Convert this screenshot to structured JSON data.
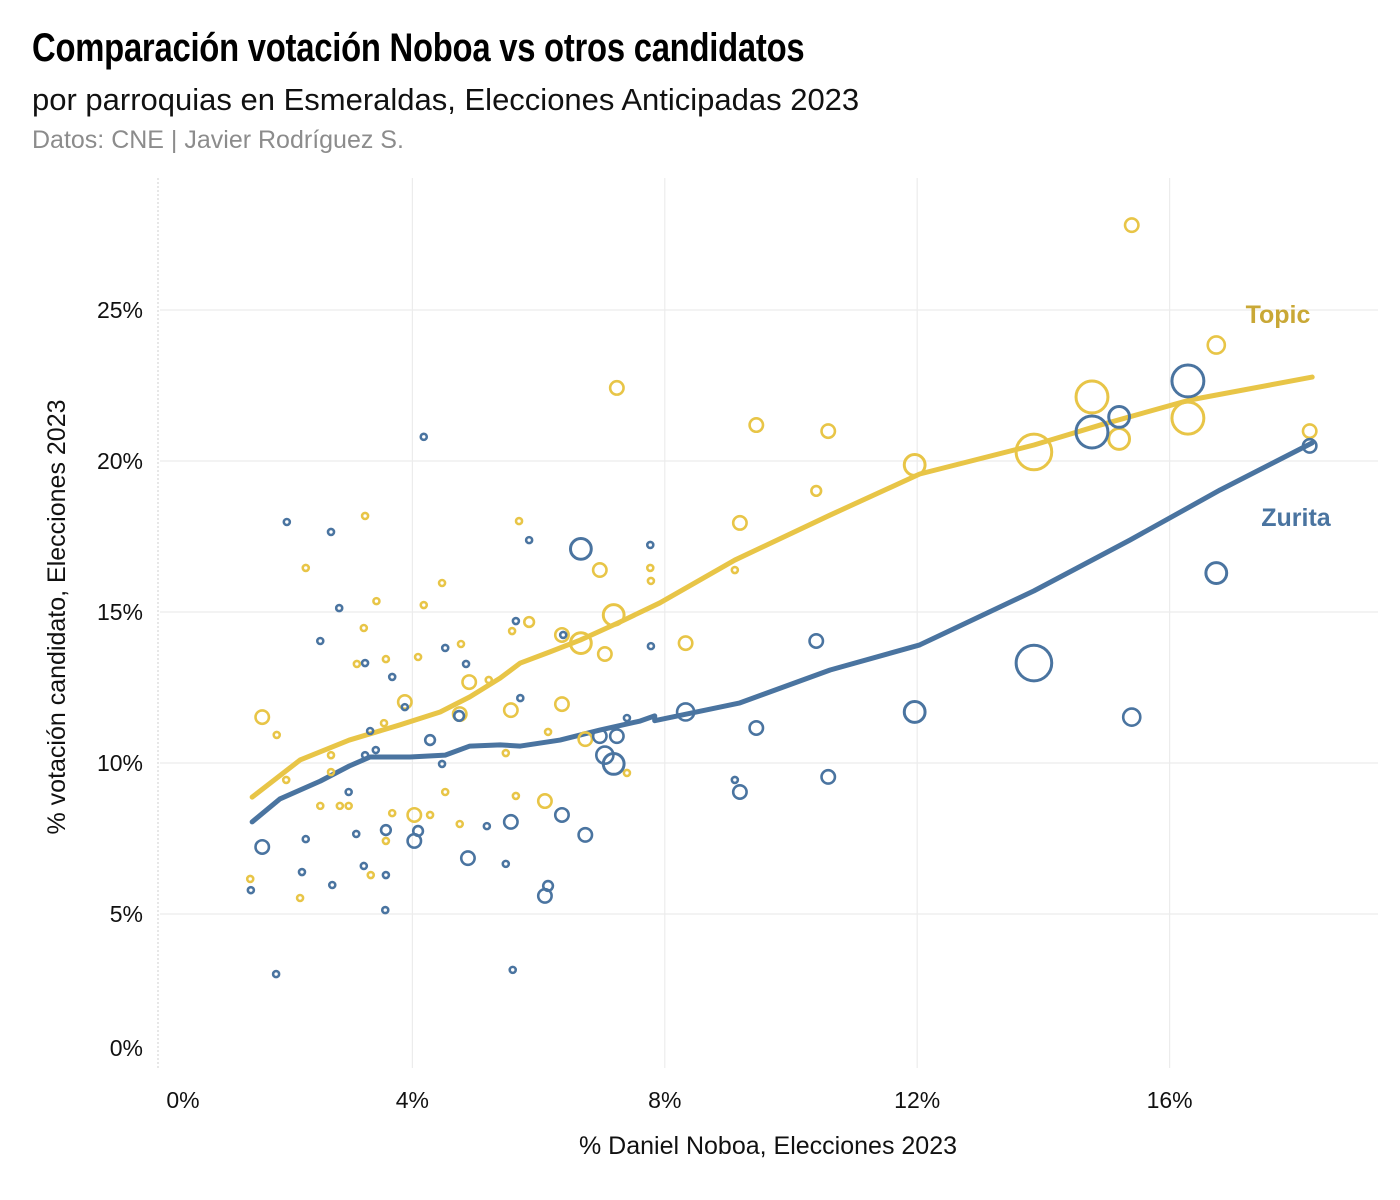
{
  "header": {
    "title": "Comparación votación Noboa vs otros candidatos",
    "subtitle": "por parroquias en Esmeraldas, Elecciones Anticipadas 2023",
    "source": "Datos: CNE | Javier Rodríguez S."
  },
  "chart_data": {
    "type": "scatter",
    "title": "Comparación votación Noboa vs otros candidatos",
    "subtitle": "por parroquias en Esmeraldas, Elecciones Anticipadas 2023",
    "xlabel": "% Daniel Noboa, Elecciones 2023",
    "ylabel": "% votación candidato, Elecciones 2023",
    "xlim": [
      0,
      19
    ],
    "ylim": [
      0,
      28
    ],
    "xticks": [
      0,
      4,
      8,
      12,
      16
    ],
    "xtick_labels": [
      "0%",
      "4%",
      "8%",
      "12%",
      "16%"
    ],
    "yticks": [
      0,
      5,
      10,
      15,
      20,
      25
    ],
    "ytick_labels": [
      "0%",
      "5%",
      "10%",
      "15%",
      "20%",
      "25%"
    ],
    "grid": true,
    "legend": "direct labels at right",
    "series": [
      {
        "name": "Topic",
        "color": "#E8C547",
        "label_color": "#C9A836",
        "points": [
          [
            1.43,
            6.16,
            1
          ],
          [
            1.62,
            11.52,
            2
          ],
          [
            1.85,
            10.93,
            1
          ],
          [
            2.0,
            9.44,
            1
          ],
          [
            2.22,
            5.53,
            1
          ],
          [
            2.31,
            16.46,
            1
          ],
          [
            2.54,
            8.58,
            1
          ],
          [
            2.71,
            10.26,
            1
          ],
          [
            2.71,
            9.7,
            1
          ],
          [
            2.85,
            8.58,
            1
          ],
          [
            2.99,
            8.58,
            1
          ],
          [
            3.12,
            13.28,
            1
          ],
          [
            3.25,
            18.18,
            1
          ],
          [
            3.23,
            14.47,
            1
          ],
          [
            3.34,
            6.29,
            1
          ],
          [
            3.43,
            15.36,
            1
          ],
          [
            3.55,
            11.32,
            1
          ],
          [
            3.58,
            13.44,
            1
          ],
          [
            3.58,
            7.42,
            1
          ],
          [
            3.68,
            8.34,
            1
          ],
          [
            3.88,
            12.02,
            2
          ],
          [
            4.03,
            8.28,
            2
          ],
          [
            4.09,
            13.51,
            1
          ],
          [
            4.18,
            15.23,
            1
          ],
          [
            4.28,
            8.28,
            1
          ],
          [
            4.47,
            15.96,
            1
          ],
          [
            4.52,
            9.04,
            1
          ],
          [
            4.75,
            7.98,
            1
          ],
          [
            4.77,
            13.94,
            1
          ],
          [
            4.75,
            11.62,
            2
          ],
          [
            4.9,
            12.68,
            2
          ],
          [
            5.21,
            12.75,
            1
          ],
          [
            5.48,
            10.33,
            1
          ],
          [
            5.56,
            11.75,
            2
          ],
          [
            5.58,
            14.37,
            1
          ],
          [
            5.64,
            8.91,
            1
          ],
          [
            5.69,
            18.01,
            1
          ],
          [
            5.85,
            14.67,
            1.5
          ],
          [
            6.1,
            8.74,
            2
          ],
          [
            6.15,
            11.03,
            1
          ],
          [
            6.37,
            14.24,
            2
          ],
          [
            6.37,
            11.95,
            2
          ],
          [
            6.67,
            13.97,
            3
          ],
          [
            6.74,
            10.79,
            2
          ],
          [
            6.97,
            16.39,
            2
          ],
          [
            7.05,
            13.61,
            2
          ],
          [
            7.19,
            14.9,
            3
          ],
          [
            7.24,
            22.42,
            2
          ],
          [
            7.4,
            9.67,
            1
          ],
          [
            7.77,
            16.46,
            1
          ],
          [
            7.78,
            16.03,
            1
          ],
          [
            8.33,
            13.97,
            2
          ],
          [
            9.11,
            16.39,
            1
          ],
          [
            9.19,
            17.95,
            2
          ],
          [
            9.45,
            21.19,
            2
          ],
          [
            10.4,
            19.01,
            1.5
          ],
          [
            10.59,
            20.99,
            2
          ],
          [
            11.96,
            19.87,
            3
          ],
          [
            13.85,
            20.3,
            5
          ],
          [
            14.77,
            22.12,
            4.5
          ],
          [
            15.2,
            20.73,
            3
          ],
          [
            15.4,
            27.81,
            2
          ],
          [
            16.29,
            21.42,
            4.5
          ],
          [
            16.74,
            23.84,
            2.5
          ],
          [
            18.22,
            20.99,
            2
          ]
        ],
        "trend": [
          [
            1.46,
            8.87
          ],
          [
            2.22,
            10.1
          ],
          [
            3.0,
            10.76
          ],
          [
            3.8,
            11.26
          ],
          [
            4.44,
            11.69
          ],
          [
            4.91,
            12.19
          ],
          [
            5.39,
            12.81
          ],
          [
            5.71,
            13.31
          ],
          [
            6.18,
            13.68
          ],
          [
            6.66,
            14.07
          ],
          [
            7.29,
            14.67
          ],
          [
            7.92,
            15.3
          ],
          [
            9.11,
            16.72
          ],
          [
            10.62,
            18.21
          ],
          [
            12.04,
            19.57
          ],
          [
            13.85,
            20.53
          ],
          [
            14.9,
            21.19
          ],
          [
            16.32,
            22.02
          ],
          [
            18.26,
            22.78
          ]
        ]
      },
      {
        "name": "Zurita",
        "color": "#4A74A0",
        "label_color": "#4A74A0",
        "points": [
          [
            1.44,
            5.79,
            1
          ],
          [
            1.62,
            7.22,
            2
          ],
          [
            1.84,
            3.01,
            1
          ],
          [
            2.01,
            17.98,
            1
          ],
          [
            2.25,
            6.39,
            1
          ],
          [
            2.31,
            7.48,
            1
          ],
          [
            2.54,
            14.04,
            1
          ],
          [
            2.71,
            17.65,
            1
          ],
          [
            2.73,
            5.96,
            1
          ],
          [
            2.84,
            15.13,
            1
          ],
          [
            2.99,
            9.04,
            1
          ],
          [
            3.11,
            7.65,
            1
          ],
          [
            3.25,
            13.31,
            1
          ],
          [
            3.23,
            6.59,
            1
          ],
          [
            3.25,
            10.26,
            1
          ],
          [
            3.33,
            11.06,
            1
          ],
          [
            3.42,
            10.43,
            1
          ],
          [
            3.58,
            7.78,
            1.5
          ],
          [
            3.58,
            6.29,
            1
          ],
          [
            3.57,
            5.13,
            1
          ],
          [
            3.68,
            12.85,
            1
          ],
          [
            3.88,
            11.85,
            1
          ],
          [
            4.03,
            7.42,
            2
          ],
          [
            4.09,
            7.75,
            1.5
          ],
          [
            4.18,
            20.8,
            1
          ],
          [
            4.28,
            10.76,
            1.5
          ],
          [
            4.47,
            9.97,
            1
          ],
          [
            4.52,
            13.81,
            1
          ],
          [
            4.74,
            11.56,
            1.5
          ],
          [
            4.85,
            13.28,
            1
          ],
          [
            4.88,
            6.85,
            2
          ],
          [
            5.18,
            7.91,
            1
          ],
          [
            5.48,
            6.66,
            1
          ],
          [
            5.56,
            8.05,
            2
          ],
          [
            5.59,
            3.15,
            1
          ],
          [
            5.64,
            14.7,
            1
          ],
          [
            5.71,
            12.15,
            1
          ],
          [
            5.85,
            17.38,
            1
          ],
          [
            6.1,
            5.6,
            2
          ],
          [
            6.15,
            5.93,
            1.5
          ],
          [
            6.37,
            8.28,
            2
          ],
          [
            6.39,
            14.24,
            1
          ],
          [
            6.67,
            17.09,
            3
          ],
          [
            6.74,
            7.62,
            2
          ],
          [
            6.97,
            10.89,
            2
          ],
          [
            7.05,
            10.26,
            2.5
          ],
          [
            7.19,
            9.97,
            3
          ],
          [
            7.24,
            10.89,
            2
          ],
          [
            7.4,
            11.49,
            1
          ],
          [
            7.77,
            17.22,
            1
          ],
          [
            7.78,
            13.87,
            1
          ],
          [
            8.33,
            11.69,
            2.5
          ],
          [
            9.11,
            9.44,
            1
          ],
          [
            9.19,
            9.04,
            2
          ],
          [
            9.45,
            11.16,
            2
          ],
          [
            10.4,
            14.04,
            2
          ],
          [
            10.59,
            9.54,
            2
          ],
          [
            11.96,
            11.69,
            3
          ],
          [
            13.85,
            13.31,
            5
          ],
          [
            14.77,
            20.96,
            4.5
          ],
          [
            15.2,
            21.46,
            3
          ],
          [
            15.4,
            11.52,
            2.5
          ],
          [
            16.29,
            22.65,
            4.5
          ],
          [
            16.74,
            16.29,
            3
          ],
          [
            18.22,
            20.5,
            2
          ]
        ],
        "trend": [
          [
            1.46,
            8.05
          ],
          [
            1.9,
            8.81
          ],
          [
            2.54,
            9.4
          ],
          [
            3.0,
            9.9
          ],
          [
            3.33,
            10.2
          ],
          [
            3.96,
            10.2
          ],
          [
            4.52,
            10.26
          ],
          [
            4.91,
            10.56
          ],
          [
            5.39,
            10.6
          ],
          [
            5.71,
            10.56
          ],
          [
            6.34,
            10.76
          ],
          [
            6.97,
            11.09
          ],
          [
            7.61,
            11.39
          ],
          [
            7.84,
            11.56
          ],
          [
            7.84,
            11.4
          ],
          [
            9.19,
            11.99
          ],
          [
            10.62,
            13.08
          ],
          [
            12.04,
            13.91
          ],
          [
            13.85,
            15.7
          ],
          [
            15.37,
            17.38
          ],
          [
            16.8,
            19.04
          ],
          [
            18.26,
            20.6
          ]
        ]
      }
    ]
  }
}
